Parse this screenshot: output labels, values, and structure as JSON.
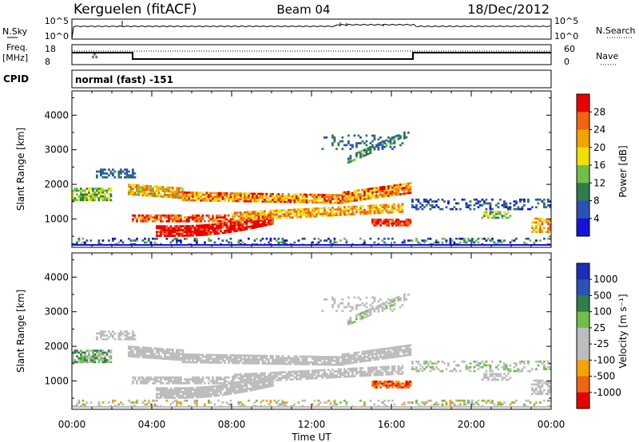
{
  "header": {
    "title": "Kerguelen (fitACF)",
    "beam": "Beam 04",
    "date": "18/Dec/2012"
  },
  "noise_panel": {
    "left_label": "N.Sky",
    "left_ticks": [
      "10^5",
      "10^0"
    ],
    "right_ticks": [
      "10^5",
      "10^0"
    ],
    "right_label": "N.Search"
  },
  "freq_panel": {
    "left_label_line1": "Freq.",
    "left_label_line2": "[MHz]",
    "left_ticks": [
      "18",
      "8"
    ],
    "right_ticks": [
      "60",
      "0"
    ],
    "right_label": "Nave"
  },
  "cpid": {
    "label": "CPID",
    "text": "normal (fast) -151"
  },
  "colors": {
    "power_scale": [
      "#1414d8",
      "#2a52b8",
      "#2e7d4b",
      "#6fbf4a",
      "#f2e000",
      "#f5a300",
      "#f06414",
      "#e80000"
    ],
    "velocity_scale": [
      "#e80000",
      "#f06414",
      "#f5a300",
      "#bdbdbd",
      "#bdbdbd",
      "#6fbf4a",
      "#2e7d4b",
      "#2a52b8",
      "#1a2eb8"
    ]
  },
  "chart_data": [
    {
      "type": "heatmap",
      "title": "Power",
      "xlabel": "",
      "ylabel": "Slant Range [km]",
      "x_tick_labels": [
        "00:00",
        "04:00",
        "08:00",
        "12:00",
        "16:00",
        "20:00",
        "00:00"
      ],
      "y_tick_labels": [
        "1000",
        "2000",
        "3000",
        "4000"
      ],
      "ylim": [
        180,
        4700
      ],
      "colorbar": {
        "label": "Power [dB]",
        "tick_labels": [
          "4",
          "8",
          "12",
          "16",
          "20",
          "24",
          "28"
        ],
        "range": [
          0,
          32
        ]
      }
    },
    {
      "type": "heatmap",
      "title": "Velocity",
      "xlabel": "Time UT",
      "ylabel": "Slant Range [km]",
      "x_tick_labels": [
        "00:00",
        "04:00",
        "08:00",
        "12:00",
        "16:00",
        "20:00",
        "00:00"
      ],
      "y_tick_labels": [
        "1000",
        "2000",
        "3000",
        "4000"
      ],
      "ylim": [
        180,
        4700
      ],
      "colorbar": {
        "label": "Velocity [m s⁻¹]",
        "tick_labels": [
          "1000",
          "500",
          "100",
          "25",
          "-25",
          "-100",
          "-500",
          "-1000"
        ]
      }
    }
  ]
}
